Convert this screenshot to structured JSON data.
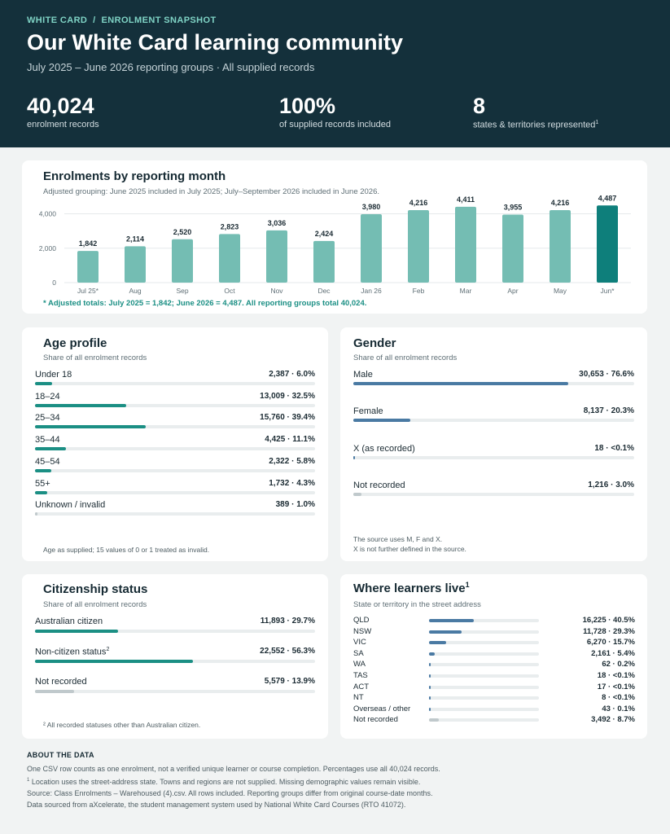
{
  "header": {
    "breadcrumb": "WHITE CARD  /  ENROLMENT SNAPSHOT",
    "title": "Our White Card learning community",
    "subtitle": "July 2025 – June 2026 reporting groups · All supplied records",
    "stats": [
      {
        "value": "40,024",
        "label": "enrolment records",
        "footnote": ""
      },
      {
        "value": "100%",
        "label": "of supplied records included",
        "footnote": ""
      },
      {
        "value": "8",
        "label": "states & territories represented",
        "footnote": "1"
      }
    ]
  },
  "colors": {
    "accent_teal": "#1b8f84",
    "bar_teal": "#74bdb3",
    "bar_dark": "#0e7f7b",
    "gender_blue": "#4a7aa3",
    "muted_fill": "#c0c9cc",
    "header_bg": "#14303b"
  },
  "months_card": {
    "title": "Enrolments by reporting month",
    "subtitle": "Adjusted grouping: June 2025 included in July 2025; July–September 2026 included in June 2026.",
    "note": "* Adjusted totals: July 2025 = 1,842; June 2026 = 4,487. All reporting groups total 40,024."
  },
  "chart_data": {
    "type": "bar",
    "categories": [
      "Jul 25*",
      "Aug",
      "Sep",
      "Oct",
      "Nov",
      "Dec",
      "Jan 26",
      "Feb",
      "Mar",
      "Apr",
      "May",
      "Jun*"
    ],
    "values": [
      1842,
      2114,
      2520,
      2823,
      3036,
      2424,
      3980,
      4216,
      4411,
      3955,
      4216,
      4487
    ],
    "value_labels": [
      "1,842",
      "2,114",
      "2,520",
      "2,823",
      "3,036",
      "2,424",
      "3,980",
      "4,216",
      "4,411",
      "3,955",
      "4,216",
      "4,487"
    ],
    "highlight_index": 11,
    "yticks": [
      0,
      2000,
      4000
    ],
    "ytick_labels": [
      "0",
      "2,000",
      "4,000"
    ],
    "ylim": [
      0,
      4500
    ],
    "grid": true,
    "title": "Enrolments by reporting month",
    "xlabel": "",
    "ylabel": ""
  },
  "age_card": {
    "title": "Age profile",
    "subtitle": "Share of all enrolment records",
    "rows": [
      {
        "label": "Under 18",
        "value": "2,387  ·  6.0%",
        "share": 6.0
      },
      {
        "label": "18–24",
        "value": "13,009  ·  32.5%",
        "share": 32.5
      },
      {
        "label": "25–34",
        "value": "15,760  ·  39.4%",
        "share": 39.4
      },
      {
        "label": "35–44",
        "value": "4,425  ·  11.1%",
        "share": 11.1
      },
      {
        "label": "45–54",
        "value": "2,322  ·  5.8%",
        "share": 5.8
      },
      {
        "label": "55+",
        "value": "1,732  ·  4.3%",
        "share": 4.3
      },
      {
        "label": "Unknown / invalid",
        "value": "389  ·  1.0%",
        "share": 1.0
      }
    ],
    "footnote": "Age as supplied; 15 values of 0 or 1 treated as invalid."
  },
  "gender_card": {
    "title": "Gender",
    "subtitle": "Share of all enrolment records",
    "rows": [
      {
        "label": "Male",
        "value": "30,653  ·  76.6%",
        "share": 76.6
      },
      {
        "label": "Female",
        "value": "8,137  ·  20.3%",
        "share": 20.3
      },
      {
        "label": "X (as recorded)",
        "value": "18  ·  <0.1%",
        "share": 0.05
      },
      {
        "label": "Not recorded",
        "value": "1,216  ·  3.0%",
        "share": 3.0
      }
    ],
    "footnote_1": "The source uses M, F and X.",
    "footnote_2": "X is not further defined in the source."
  },
  "citizen_card": {
    "title": "Citizenship status",
    "subtitle": "Share of all enrolment records",
    "rows": [
      {
        "label": "Australian citizen",
        "footnote": "",
        "value": "11,893  ·  29.7%",
        "share": 29.7
      },
      {
        "label": "Non-citizen status",
        "footnote": "2",
        "value": "22,552  ·  56.3%",
        "share": 56.3
      },
      {
        "label": "Not recorded",
        "footnote": "",
        "value": "5,579  ·  13.9%",
        "share": 13.9
      }
    ],
    "footnote": "² All recorded statuses other than Australian citizen."
  },
  "geo_card": {
    "title": "Where learners live",
    "title_footnote": "1",
    "subtitle": "State or territory in the street address",
    "rows": [
      {
        "label": "QLD",
        "value": "16,225  ·  40.5%",
        "share": 40.5
      },
      {
        "label": "NSW",
        "value": "11,728  ·  29.3%",
        "share": 29.3
      },
      {
        "label": "VIC",
        "value": "6,270  ·  15.7%",
        "share": 15.7
      },
      {
        "label": "SA",
        "value": "2,161  ·  5.4%",
        "share": 5.4
      },
      {
        "label": "WA",
        "value": "62  ·  0.2%",
        "share": 0.2
      },
      {
        "label": "TAS",
        "value": "18  ·  <0.1%",
        "share": 0.05
      },
      {
        "label": "ACT",
        "value": "17  ·  <0.1%",
        "share": 0.05
      },
      {
        "label": "NT",
        "value": "8  ·  <0.1%",
        "share": 0.05
      },
      {
        "label": "Overseas / other",
        "value": "43  ·  0.1%",
        "share": 0.1
      },
      {
        "label": "Not recorded",
        "value": "3,492  ·  8.7%",
        "share": 8.7
      }
    ]
  },
  "about": {
    "title": "ABOUT THE DATA",
    "line_1": "One CSV row counts as one enrolment, not a verified unique learner or course completion. Percentages use all 40,024 records.",
    "line_2_mark": "1",
    "line_2": " Location uses the street-address state. Towns and regions are not supplied. Missing demographic values remain visible.",
    "line_3": "Source: Class Enrolments – Warehoused (4).csv. All rows included. Reporting groups differ from original course-date months.",
    "line_4": "Data sourced from aXcelerate, the student management system used by National White Card Courses (RTO 41072)."
  }
}
